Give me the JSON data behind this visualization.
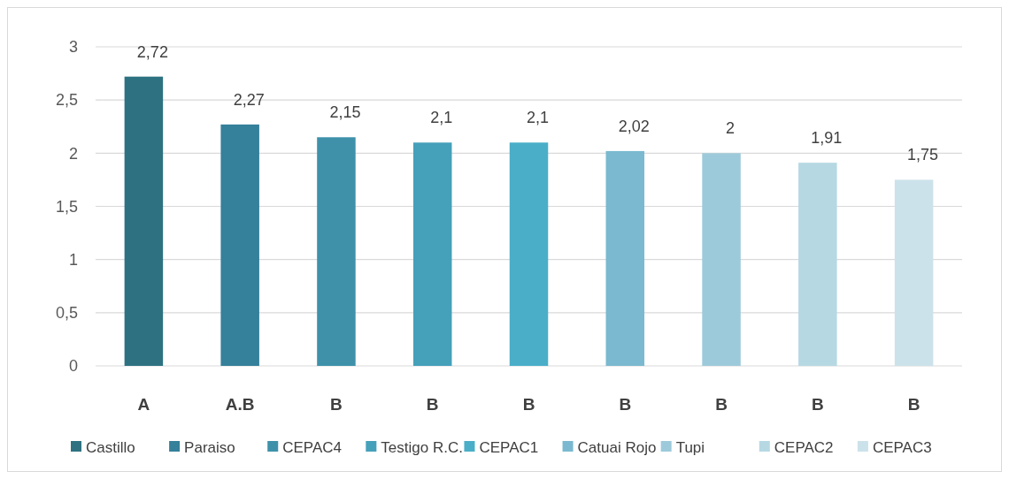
{
  "chart_data": {
    "type": "bar",
    "categories": [
      "A",
      "A.B",
      "B",
      "B",
      "B",
      "B",
      "B",
      "B",
      "B"
    ],
    "series": [
      {
        "name": "Castillo",
        "color": "#2e7282",
        "values": [
          2.72,
          null,
          null,
          null,
          null,
          null,
          null,
          null,
          null
        ],
        "value_labels": [
          "2,72",
          null,
          null,
          null,
          null,
          null,
          null,
          null,
          null
        ]
      },
      {
        "name": "Paraiso",
        "color": "#35809a",
        "values": [
          null,
          2.27,
          null,
          null,
          null,
          null,
          null,
          null,
          null
        ],
        "value_labels": [
          null,
          "2,27",
          null,
          null,
          null,
          null,
          null,
          null,
          null
        ]
      },
      {
        "name": "CEPAC4",
        "color": "#3f91aa",
        "values": [
          null,
          null,
          2.15,
          null,
          null,
          null,
          null,
          null,
          null
        ],
        "value_labels": [
          null,
          null,
          "2,15",
          null,
          null,
          null,
          null,
          null,
          null
        ]
      },
      {
        "name": "Testigo R.C.",
        "color": "#45a0ba",
        "values": [
          null,
          null,
          null,
          2.1,
          null,
          null,
          null,
          null,
          null
        ],
        "value_labels": [
          null,
          null,
          null,
          "2,1",
          null,
          null,
          null,
          null,
          null
        ]
      },
      {
        "name": "CEPAC1",
        "color": "#4aaec8",
        "values": [
          null,
          null,
          null,
          null,
          2.1,
          null,
          null,
          null,
          null
        ],
        "value_labels": [
          null,
          null,
          null,
          null,
          "2,1",
          null,
          null,
          null,
          null
        ]
      },
      {
        "name": "Catuai Rojo",
        "color": "#7ab9cf",
        "values": [
          null,
          null,
          null,
          null,
          null,
          2.02,
          null,
          null,
          null
        ],
        "value_labels": [
          null,
          null,
          null,
          null,
          null,
          "2,02",
          null,
          null,
          null
        ]
      },
      {
        "name": "Tupi",
        "color": "#9dcadb",
        "values": [
          null,
          null,
          null,
          null,
          null,
          null,
          2,
          null,
          null
        ],
        "value_labels": [
          null,
          null,
          null,
          null,
          null,
          null,
          "2",
          null,
          null
        ]
      },
      {
        "name": "CEPAC2",
        "color": "#b6d8e3",
        "values": [
          null,
          null,
          null,
          null,
          null,
          null,
          null,
          1.91,
          null
        ],
        "value_labels": [
          null,
          null,
          null,
          null,
          null,
          null,
          null,
          "1,91",
          null
        ]
      },
      {
        "name": "CEPAC3",
        "color": "#cce2ea",
        "values": [
          null,
          null,
          null,
          null,
          null,
          null,
          null,
          null,
          1.75
        ],
        "value_labels": [
          null,
          null,
          null,
          null,
          null,
          null,
          null,
          null,
          "1,75"
        ]
      }
    ],
    "ylim": [
      0,
      3
    ],
    "yticks": [
      0,
      {
        "value": 0.5,
        "label": "0,5"
      },
      1,
      {
        "value": 1.5,
        "label": "1,5"
      },
      2,
      {
        "value": 2.5,
        "label": "2,5"
      },
      3
    ],
    "grid": "y",
    "legend": "bottom"
  }
}
